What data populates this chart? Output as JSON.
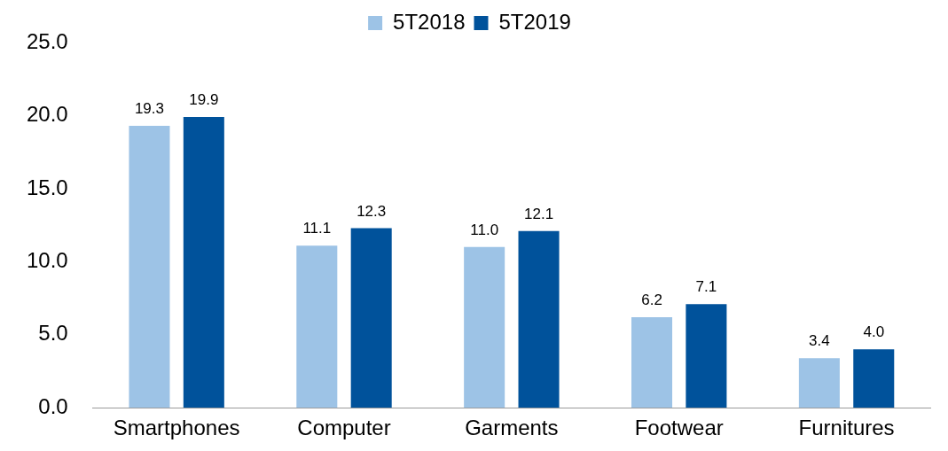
{
  "chart_data": {
    "type": "bar",
    "categories": [
      "Smartphones",
      "Computer",
      "Garments",
      "Footwear",
      "Furnitures"
    ],
    "series": [
      {
        "name": "5T2018",
        "color": "#9dc3e6",
        "values": [
          19.3,
          11.1,
          11.0,
          6.2,
          3.4
        ],
        "value_labels": [
          "19.3",
          "11.1",
          "11.0",
          "6.2",
          "3.4"
        ]
      },
      {
        "name": "5T2019",
        "color": "#00529b",
        "values": [
          19.9,
          12.3,
          12.1,
          7.1,
          4.0
        ],
        "value_labels": [
          "19.9",
          "12.3",
          "12.1",
          "7.1",
          "4.0"
        ]
      }
    ],
    "ylim": [
      0,
      25
    ],
    "yticks": [
      {
        "value": 0,
        "label": "0.0"
      },
      {
        "value": 5,
        "label": "5.0"
      },
      {
        "value": 10,
        "label": "10.0"
      },
      {
        "value": 15,
        "label": "15.0"
      },
      {
        "value": 20,
        "label": "20.0"
      },
      {
        "value": 25,
        "label": "25.0"
      }
    ],
    "grid": false,
    "legend": "top"
  }
}
